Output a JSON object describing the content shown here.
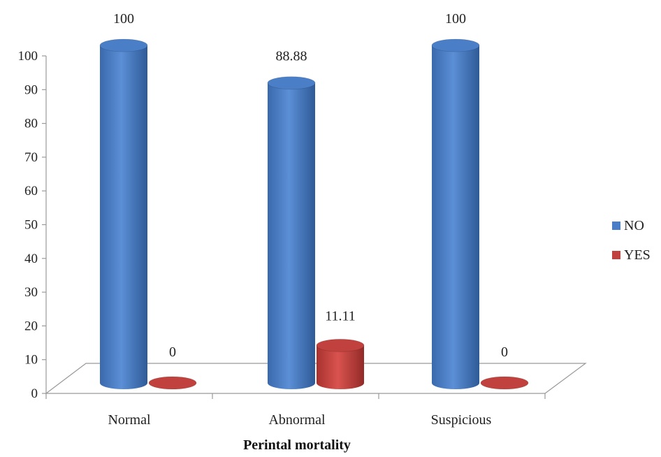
{
  "chart_data": {
    "type": "bar",
    "categories": [
      "Normal",
      "Abnormal",
      "Suspicious"
    ],
    "series": [
      {
        "name": "NO",
        "values": [
          100,
          88.88,
          100
        ],
        "color": "#4a7fc8"
      },
      {
        "name": "YES",
        "values": [
          0,
          11.11,
          0
        ],
        "color": "#c0413d"
      }
    ],
    "data_labels": [
      [
        "100",
        "88.88",
        "100"
      ],
      [
        "0",
        "11.11",
        "0"
      ]
    ],
    "yticks": [
      0,
      10,
      20,
      30,
      40,
      50,
      60,
      70,
      80,
      90,
      100
    ],
    "ylim": [
      0,
      100
    ],
    "title": "",
    "xlabel": "Perintal mortality",
    "ylabel": "",
    "legend_position": "right",
    "style": "3d-cylinder",
    "grid": false
  }
}
